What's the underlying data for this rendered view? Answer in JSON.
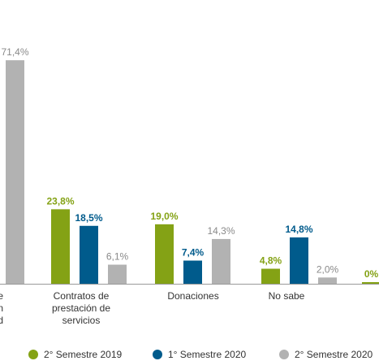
{
  "chart_data": {
    "type": "bar",
    "categories": [
      [
        "n de",
        "con",
        "dad"
      ],
      [
        "Contratos de",
        "prestación de",
        "servicios"
      ],
      [
        "Donaciones"
      ],
      [
        "No sabe"
      ],
      [
        ""
      ]
    ],
    "series": [
      {
        "name": "2° Semestre 2019",
        "color": "#84a215",
        "values": [
          null,
          23.8,
          19.0,
          4.8,
          0.0
        ],
        "labels": [
          "",
          "23,8%",
          "19,0%",
          "4,8%",
          "0%"
        ]
      },
      {
        "name": "1° Semestre 2020",
        "color": "#005b8c",
        "values": [
          null,
          18.5,
          7.4,
          14.8,
          null
        ],
        "labels": [
          "",
          "18,5%",
          "7,4%",
          "14,8%",
          ""
        ]
      },
      {
        "name": "2° Semestre 2020",
        "color": "#b2b2b2",
        "values": [
          71.4,
          6.1,
          14.3,
          2.0,
          null
        ],
        "labels": [
          "71,4%",
          "6,1%",
          "14,3%",
          "2,0%",
          ""
        ]
      }
    ],
    "ylim": [
      0,
      75
    ],
    "grid": false,
    "legend": "bottom"
  }
}
